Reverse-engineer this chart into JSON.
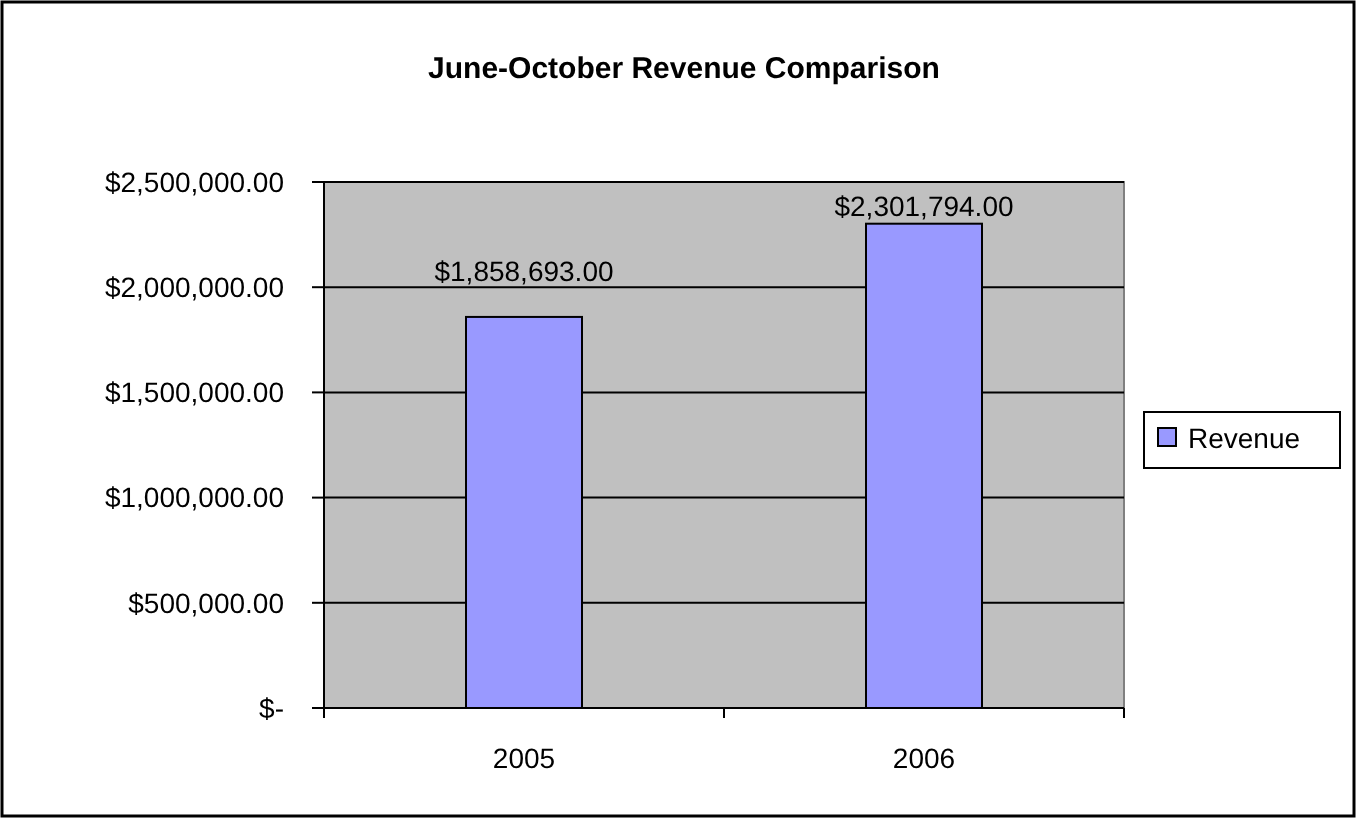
{
  "chart_data": {
    "type": "bar",
    "title": "June-October Revenue Comparison",
    "categories": [
      "2005",
      "2006"
    ],
    "series": [
      {
        "name": "Revenue",
        "color": "#9999ff",
        "values": [
          1858693,
          2301794
        ],
        "value_labels": [
          "$1,858,693.00",
          "$2,301,794.00"
        ]
      }
    ],
    "ylim": [
      0,
      2500000
    ],
    "yticks": [
      {
        "value": 0,
        "label": "$-"
      },
      {
        "value": 500000,
        "label": "$500,000.00"
      },
      {
        "value": 1000000,
        "label": "$1,000,000.00"
      },
      {
        "value": 1500000,
        "label": "$1,500,000.00"
      },
      {
        "value": 2000000,
        "label": "$2,000,000.00"
      },
      {
        "value": 2500000,
        "label": "$2,500,000.00"
      }
    ],
    "grid": "y",
    "legend": "right"
  }
}
